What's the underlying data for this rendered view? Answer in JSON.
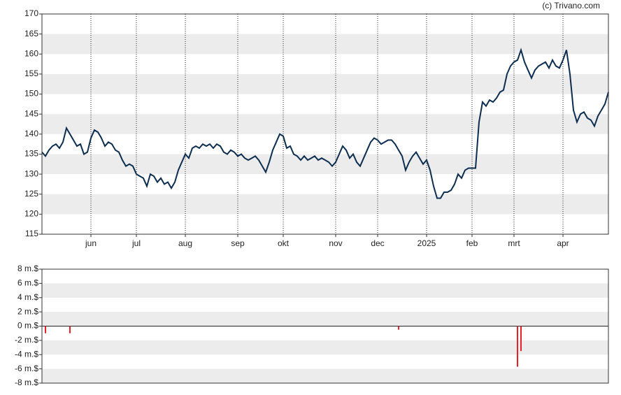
{
  "chart_data": [
    {
      "type": "line",
      "annotation": "(c) Trivano.com",
      "color": "#0d2d4f",
      "values": [
        135.5,
        134.5,
        136,
        137,
        137.5,
        136.5,
        138,
        141.5,
        140,
        138.5,
        137,
        137.5,
        135,
        135.5,
        139,
        141,
        140.5,
        139,
        137,
        138,
        137.5,
        136,
        135.5,
        133.5,
        132,
        132.5,
        132,
        130,
        129.5,
        129,
        127,
        130,
        129.5,
        128,
        129,
        127.5,
        128,
        126.5,
        128,
        131,
        133,
        135,
        134,
        136.5,
        137,
        136.5,
        137.5,
        137,
        137.5,
        136.5,
        137.5,
        137,
        135.5,
        135,
        136,
        135.5,
        134.5,
        135,
        134,
        133.5,
        134,
        134.5,
        133.5,
        132,
        130.5,
        133,
        136,
        138,
        140,
        139.5,
        136.5,
        137,
        135,
        134.5,
        133.5,
        134.5,
        133.5,
        134,
        134.5,
        133.5,
        134,
        133.5,
        133,
        132,
        133,
        135,
        137,
        136,
        134,
        135,
        133,
        132,
        134,
        136,
        138,
        139,
        138.5,
        137.5,
        138,
        138.5,
        138.5,
        137.5,
        136,
        134.5,
        131,
        133,
        134.5,
        135.5,
        134,
        132.5,
        133.5,
        131,
        127,
        124,
        124,
        125.5,
        125.5,
        126,
        127.5,
        130,
        129,
        131,
        131.5,
        131.5,
        131.5,
        143,
        148,
        147,
        148.5,
        148,
        149,
        150.5,
        151,
        155,
        157,
        158,
        158.5,
        161,
        158,
        156,
        154,
        156,
        157,
        157.5,
        158,
        156.5,
        158.5,
        157,
        156.5,
        158.5,
        161,
        155,
        146,
        143,
        145,
        145.5,
        144,
        143.5,
        142,
        144.5,
        146,
        147.5,
        150.5
      ],
      "xlim": [
        0,
        162
      ],
      "xticks": [
        {
          "value": 14,
          "label": "jun"
        },
        {
          "value": 27,
          "label": "jul"
        },
        {
          "value": 41,
          "label": "aug"
        },
        {
          "value": 56,
          "label": "sep"
        },
        {
          "value": 69,
          "label": "okt"
        },
        {
          "value": 84,
          "label": "nov"
        },
        {
          "value": 96,
          "label": "dec"
        },
        {
          "value": 110,
          "label": "2025"
        },
        {
          "value": 123,
          "label": "feb"
        },
        {
          "value": 135,
          "label": "mrt"
        },
        {
          "value": 149,
          "label": "apr"
        }
      ],
      "ylim": [
        115,
        170
      ],
      "yticks": [
        115,
        120,
        125,
        130,
        135,
        140,
        145,
        150,
        155,
        160,
        165,
        170
      ],
      "grid": true
    },
    {
      "type": "bar",
      "color": "#e8202a",
      "x": [
        1,
        8,
        102,
        136,
        137
      ],
      "values": [
        -1,
        -1,
        -0.5,
        -5.7,
        -3.5
      ],
      "xlim": [
        0,
        162
      ],
      "ylim": [
        -8,
        8
      ],
      "yticks": [
        {
          "value": 8,
          "label": "8 m.$"
        },
        {
          "value": 6,
          "label": "6 m.$"
        },
        {
          "value": 4,
          "label": "4 m.$"
        },
        {
          "value": 2,
          "label": "2 m.$"
        },
        {
          "value": 0,
          "label": "0 m.$"
        },
        {
          "value": -2,
          "label": "-2 m.$"
        },
        {
          "value": -4,
          "label": "-4 m.$"
        },
        {
          "value": -6,
          "label": "-6 m.$"
        },
        {
          "value": -8,
          "label": "-8 m.$"
        }
      ],
      "grid": true
    }
  ]
}
